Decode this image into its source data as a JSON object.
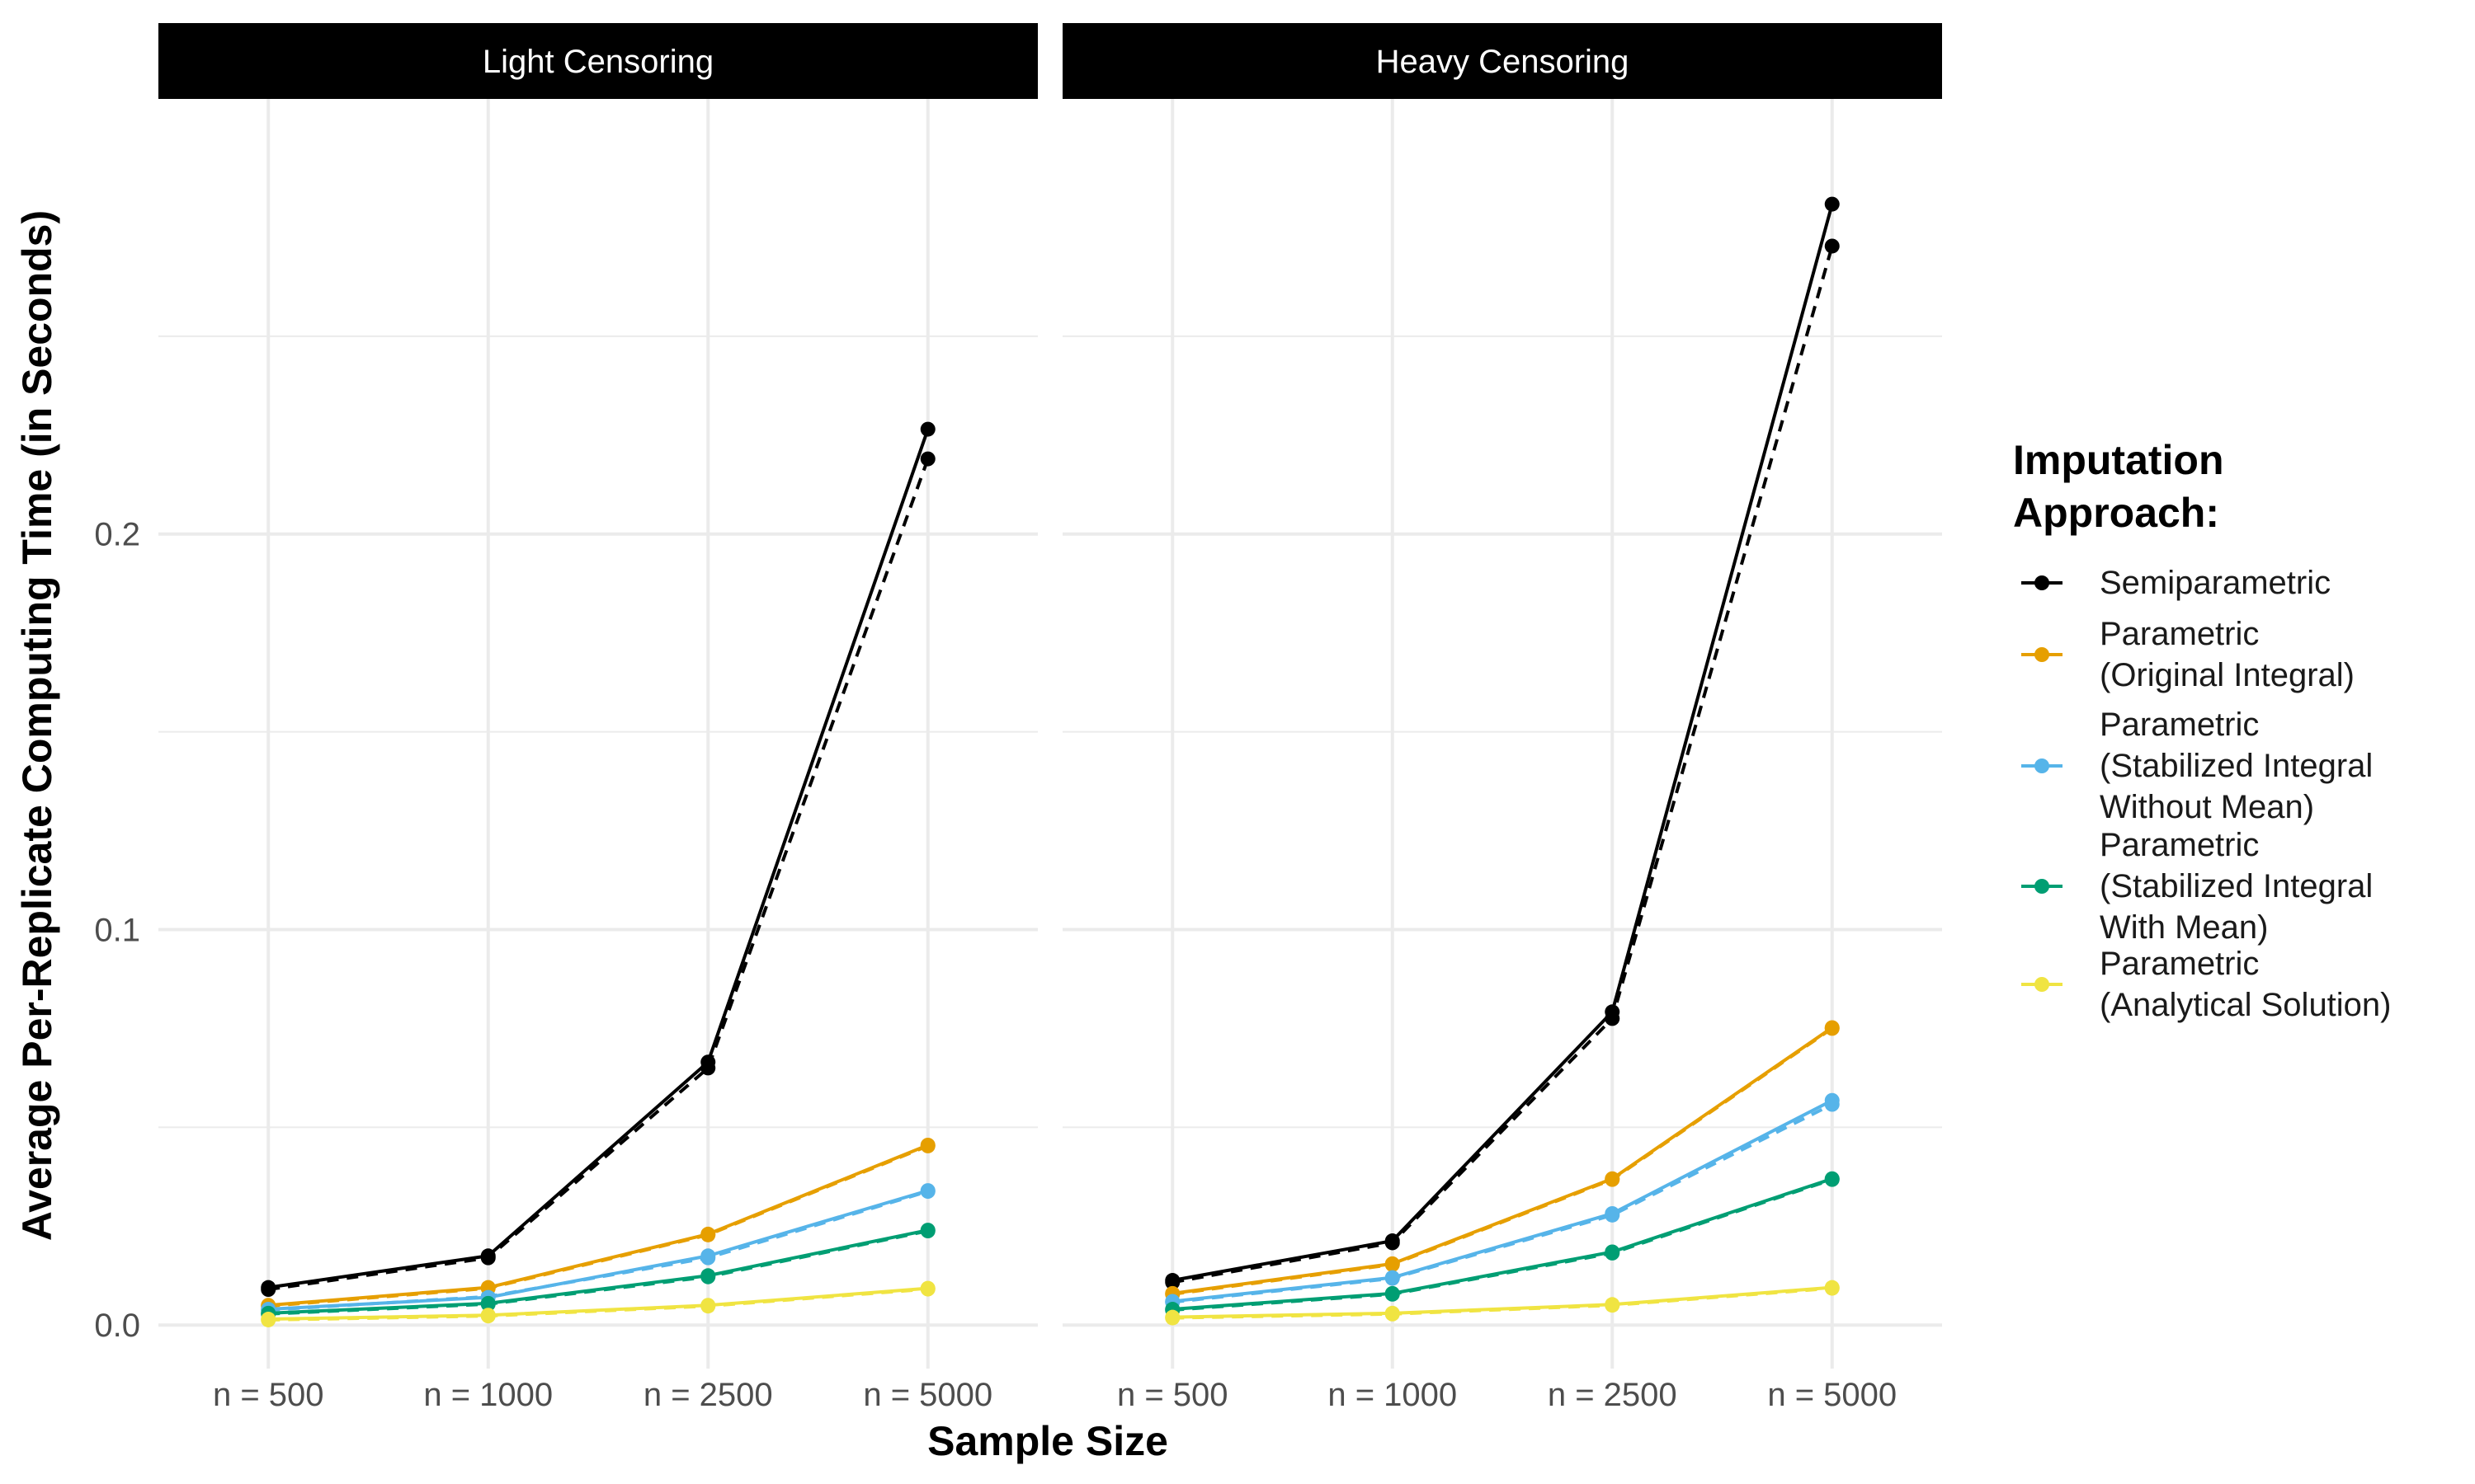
{
  "chart_data": {
    "type": "line",
    "ylabel": "Average Per-Replicate Computing Time (in Seconds)",
    "xlabel": "Sample Size",
    "categories": [
      "n = 500",
      "n = 1000",
      "n = 2500",
      "n = 5000"
    ],
    "y_ticks": [
      0.0,
      0.1,
      0.2
    ],
    "y_tick_labels": [
      "0.0",
      "0.1",
      "0.2"
    ],
    "ylim": [
      -0.011,
      0.31
    ],
    "grid": true,
    "legend": {
      "title_lines": [
        "Imputation",
        "Approach:"
      ],
      "placement": "right",
      "entries": [
        {
          "lines": [
            "Semiparametric"
          ],
          "color": "#000000"
        },
        {
          "lines": [
            "Parametric",
            "(Original Integral)"
          ],
          "color": "#E69F00"
        },
        {
          "lines": [
            "Parametric",
            "(Stabilized Integral",
            "Without Mean)"
          ],
          "color": "#56B4E9"
        },
        {
          "lines": [
            "Parametric",
            "(Stabilized Integral",
            " With Mean)"
          ],
          "color": "#009E73"
        },
        {
          "lines": [
            "Parametric",
            "(Analytical Solution)"
          ],
          "color": "#F0E442"
        }
      ]
    },
    "panels": [
      {
        "title": "Light Censoring",
        "series": [
          {
            "color": "#000000",
            "style": "solid",
            "values": [
              0.0095,
              0.0175,
              0.0665,
              0.2265
            ]
          },
          {
            "color": "#000000",
            "style": "dashed",
            "values": [
              0.009,
              0.017,
              0.065,
              0.219
            ]
          },
          {
            "color": "#E69F00",
            "style": "solid",
            "values": [
              0.005,
              0.0095,
              0.023,
              0.0455
            ]
          },
          {
            "color": "#E69F00",
            "style": "dashed",
            "values": [
              0.0048,
              0.0093,
              0.0228,
              0.0453
            ]
          },
          {
            "color": "#56B4E9",
            "style": "solid",
            "values": [
              0.004,
              0.007,
              0.0175,
              0.034
            ]
          },
          {
            "color": "#56B4E9",
            "style": "dashed",
            "values": [
              0.0038,
              0.0072,
              0.017,
              0.0338
            ]
          },
          {
            "color": "#009E73",
            "style": "solid",
            "values": [
              0.003,
              0.0055,
              0.0125,
              0.024
            ]
          },
          {
            "color": "#009E73",
            "style": "dashed",
            "values": [
              0.0028,
              0.0053,
              0.0122,
              0.0238
            ]
          },
          {
            "color": "#F0E442",
            "style": "solid",
            "values": [
              0.0015,
              0.0025,
              0.005,
              0.0093
            ]
          },
          {
            "color": "#F0E442",
            "style": "dashed",
            "values": [
              0.0013,
              0.0023,
              0.0048,
              0.0091
            ]
          }
        ]
      },
      {
        "title": "Heavy Censoring",
        "series": [
          {
            "color": "#000000",
            "style": "solid",
            "values": [
              0.0113,
              0.0213,
              0.0792,
              0.2834
            ]
          },
          {
            "color": "#000000",
            "style": "dashed",
            "values": [
              0.0108,
              0.0208,
              0.0775,
              0.2728
            ]
          },
          {
            "color": "#E69F00",
            "style": "solid",
            "values": [
              0.008,
              0.0155,
              0.037,
              0.0752
            ]
          },
          {
            "color": "#E69F00",
            "style": "dashed",
            "values": [
              0.0078,
              0.0153,
              0.0368,
              0.075
            ]
          },
          {
            "color": "#56B4E9",
            "style": "solid",
            "values": [
              0.006,
              0.012,
              0.0282,
              0.0568
            ]
          },
          {
            "color": "#56B4E9",
            "style": "dashed",
            "values": [
              0.0058,
              0.0118,
              0.0278,
              0.0558
            ]
          },
          {
            "color": "#009E73",
            "style": "solid",
            "values": [
              0.004,
              0.008,
              0.0185,
              0.037
            ]
          },
          {
            "color": "#009E73",
            "style": "dashed",
            "values": [
              0.0038,
              0.0078,
              0.0182,
              0.0368
            ]
          },
          {
            "color": "#F0E442",
            "style": "solid",
            "values": [
              0.002,
              0.003,
              0.0052,
              0.0095
            ]
          },
          {
            "color": "#F0E442",
            "style": "dashed",
            "values": [
              0.0018,
              0.0028,
              0.005,
              0.0093
            ]
          }
        ]
      }
    ]
  }
}
